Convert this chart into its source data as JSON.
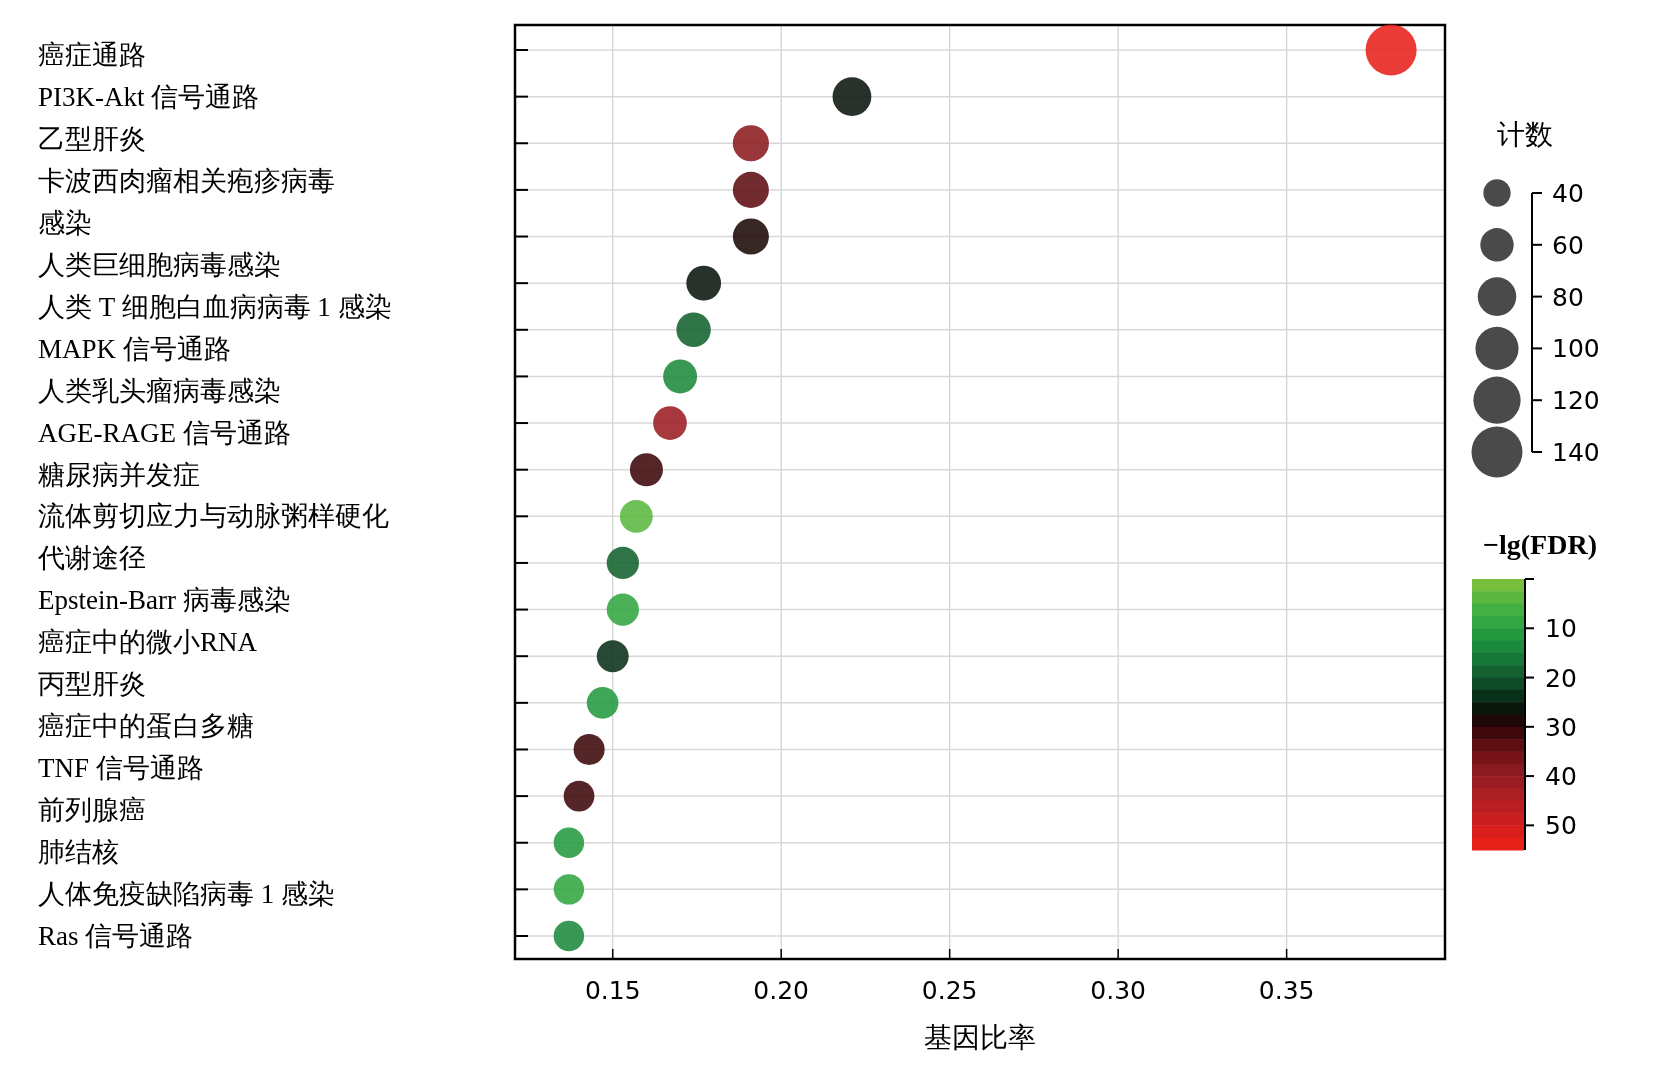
{
  "chart_data": {
    "type": "scatter",
    "orientation": "horizontal",
    "xlabel": "基因比率",
    "legend_title": "计数",
    "clabel": "−lg(FDR)",
    "grid": true,
    "marker": "circle",
    "tick_labels": "x",
    "categories": [
      null,
      null,
      null,
      null,
      null,
      null,
      null,
      null,
      null,
      null,
      null,
      null,
      null,
      null,
      null,
      null,
      null,
      null,
      null,
      null
    ],
    "annotations": [
      "癌症通路",
      "PI3K-Akt 信号通路",
      "乙型肝炎",
      "卡波西肉瘤相关疱疹病毒",
      "感染",
      "人类巨细胞病毒感染",
      "人类 T 细胞白血病病毒 1 感染",
      "MAPK 信号通路",
      "人类乳头瘤病毒感染",
      "AGE-RAGE 信号通路",
      "糖尿病并发症",
      "流体剪切应力与动脉粥样硬化",
      "代谢途径",
      "Epstein-Barr 病毒感染",
      "癌症中的微小RNA",
      "丙型肝炎",
      "癌症中的蛋白多糖",
      "TNF 信号通路",
      "前列腺癌",
      "肺结核",
      "人体免疫缺陷病毒 1 感染",
      "Ras 信号通路"
    ],
    "values": [
      0.381,
      0.221,
      0.191,
      0.191,
      0.191,
      0.177,
      0.174,
      0.17,
      0.167,
      0.16,
      0.157,
      0.153,
      0.153,
      0.15,
      0.147,
      0.143,
      0.14,
      0.137,
      0.137,
      0.137
    ],
    "sizes": [
      140,
      81,
      70,
      70,
      70,
      65,
      64,
      62,
      61,
      59,
      58,
      56,
      56,
      55,
      54,
      52,
      51,
      50,
      50,
      50
    ],
    "cvalues": [
      55,
      26,
      38,
      33,
      29,
      26,
      18,
      14,
      40,
      31,
      3,
      19,
      8,
      23,
      12,
      30,
      32,
      12,
      9,
      14
    ],
    "size_legend": [
      40,
      60,
      80,
      100,
      120,
      140
    ],
    "clim": [
      0,
      55
    ],
    "cticks": [
      10,
      20,
      30,
      40,
      50
    ],
    "xlim": [
      0.121,
      0.397
    ],
    "xticks": [
      {
        "value": 0.15,
        "label": "0.15"
      },
      {
        "value": 0.2,
        "label": "0.20"
      },
      {
        "value": 0.25,
        "label": "0.25"
      },
      {
        "value": 0.3,
        "label": "0.30"
      },
      {
        "value": 0.35,
        "label": "0.35"
      }
    ]
  }
}
